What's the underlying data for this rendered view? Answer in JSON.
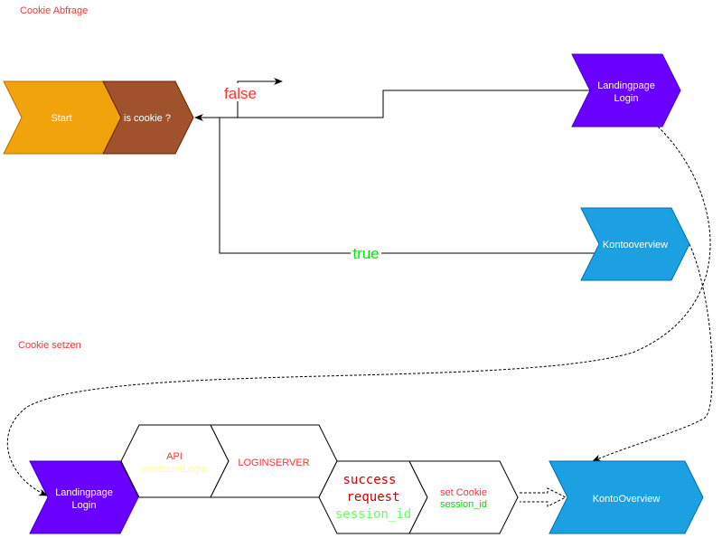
{
  "sections": {
    "cookie_check": "Cookie Abfrage",
    "cookie_set": "Cookie setzen"
  },
  "nodes": {
    "start": "Start",
    "is_cookie": "is cookie ?",
    "landing_top": [
      "Landingpage",
      "Login"
    ],
    "konto_top": "Kontooverview",
    "landing_bottom": [
      "Landingpage",
      "Login"
    ],
    "api": [
      "API",
      "unsecureLogin"
    ],
    "loginserver": "LOGINSERVER",
    "success": [
      "success",
      "request",
      "session_id"
    ],
    "set_cookie": [
      "set Cookie",
      "session_id"
    ],
    "konto_bottom": "KontoOverview"
  },
  "edges": {
    "false_label": "false",
    "true_label": "true"
  },
  "colors": {
    "start": "#f0a30a",
    "is_cookie": "#a0522d",
    "landing": "#6a00ff",
    "konto": "#1ba1e2",
    "red_text": "#ff3333",
    "green_text": "#00ff00"
  }
}
